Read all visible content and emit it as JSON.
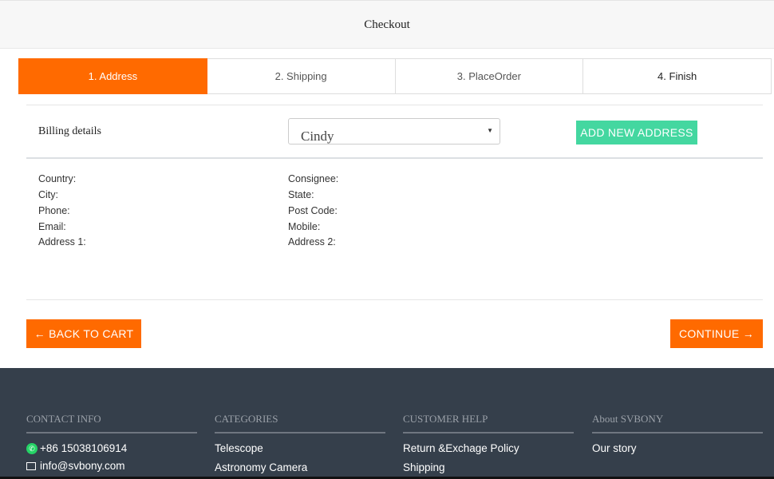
{
  "header": {
    "title": "Checkout"
  },
  "steps": [
    {
      "label": "1. Address",
      "active": true
    },
    {
      "label": "2. Shipping"
    },
    {
      "label": "3. PlaceOrder"
    },
    {
      "label": "4. Finish"
    }
  ],
  "billing": {
    "label": "Billing details",
    "selected_address": "Cindy",
    "add_button": "ADD NEW ADDRESS"
  },
  "fields_left": [
    "Country:",
    "City:",
    "Phone:",
    "Email:",
    "Address 1:"
  ],
  "fields_right": [
    "Consignee:",
    "State:",
    "Post Code:",
    "Mobile:",
    "Address 2:"
  ],
  "actions": {
    "back": "← BACK TO CART",
    "continue": "CONTINUE →"
  },
  "footer": {
    "columns": [
      {
        "title": "CONTACT INFO",
        "items": [
          "+86 15038106914",
          "info@svbony.com"
        ]
      },
      {
        "title": "CATEGORIES",
        "items": [
          "Telescope",
          "Astronomy Camera"
        ]
      },
      {
        "title": "CUSTOMER HELP",
        "items": [
          "Return &Exchage Policy",
          "Shipping"
        ]
      },
      {
        "title": "About SVBONY",
        "items": [
          "Our story"
        ]
      }
    ]
  },
  "colors": {
    "accent": "#ff6a00",
    "add_button": "#44d7a0",
    "footer_bg": "#353f4b"
  }
}
